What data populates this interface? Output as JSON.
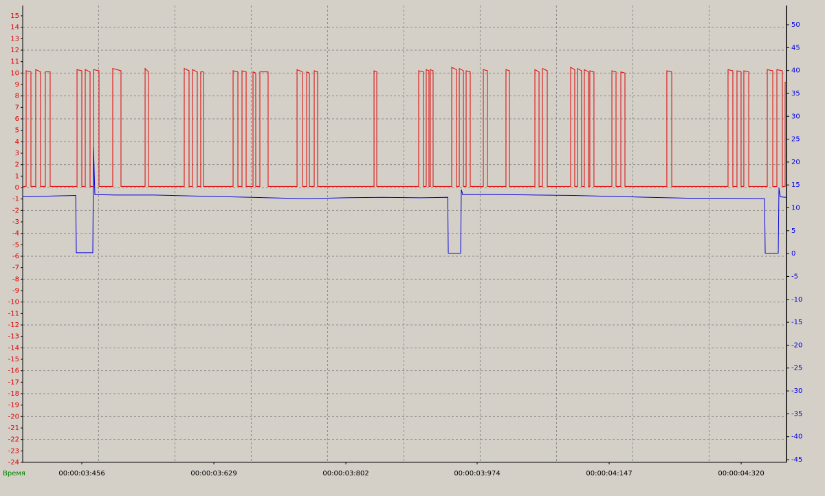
{
  "chart_data": {
    "type": "line",
    "x_label": "Время",
    "xlim": [
      3.3785,
      4.3794
    ],
    "xticks": [
      {
        "value": 3.456,
        "label": "00:00:03:456"
      },
      {
        "value": 3.629,
        "label": "00:00:03:629"
      },
      {
        "value": 3.802,
        "label": "00:00:03:802"
      },
      {
        "value": 3.974,
        "label": "00:00:03:974"
      },
      {
        "value": 4.147,
        "label": "00:00:04:147"
      },
      {
        "value": 4.32,
        "label": "00:00:04:320"
      }
    ],
    "xgrid": [
      3.478,
      3.578,
      3.678,
      3.778,
      3.878,
      3.978,
      4.078,
      4.178,
      4.278
    ],
    "ylim": [
      -24,
      15.9
    ],
    "yticks": [
      15,
      14,
      13,
      12,
      11,
      10,
      9,
      8,
      7,
      6,
      5,
      4,
      3,
      2,
      1,
      0,
      -1,
      -2,
      -3,
      -4,
      -5,
      -6,
      -7,
      -8,
      -9,
      -10,
      -11,
      -12,
      -13,
      -14,
      -15,
      -16,
      -17,
      -18,
      -19,
      -20,
      -21,
      -22,
      -23,
      -24
    ],
    "y2lim": [
      -45.6,
      54.2
    ],
    "y2ticks": [
      50,
      45,
      40,
      35,
      30,
      25,
      20,
      15,
      10,
      5,
      0,
      -5,
      -10,
      -15,
      -20,
      -25,
      -30,
      -35,
      -40,
      -45
    ],
    "grid": true,
    "ytick_color": "#e00000",
    "y2tick_color": "#0000e0",
    "x_label_color": "#008000",
    "series": [
      {
        "color": "#e00000",
        "axis": "y",
        "x": [
          3.3785,
          3.383,
          3.383,
          3.3893,
          3.3893,
          3.3956,
          3.3956,
          3.4019,
          3.4019,
          3.4082,
          3.4082,
          3.4145,
          3.4145,
          3.4497,
          3.4497,
          3.456,
          3.456,
          3.4605,
          3.4605,
          3.4668,
          3.4668,
          3.4713,
          3.4713,
          3.4785,
          3.4785,
          3.4965,
          3.4965,
          3.5073,
          3.5073,
          3.5389,
          3.5389,
          3.5434,
          3.5434,
          3.5902,
          3.5902,
          3.5965,
          3.5965,
          3.601,
          3.601,
          3.6073,
          3.6073,
          3.6118,
          3.6118,
          3.6154,
          3.6154,
          3.6542,
          3.6542,
          3.6605,
          3.6605,
          3.6659,
          3.6659,
          3.6713,
          3.6713,
          3.6803,
          3.6803,
          3.6839,
          3.6839,
          3.6893,
          3.6893,
          3.7001,
          3.7001,
          3.738,
          3.738,
          3.7452,
          3.7452,
          3.7506,
          3.7506,
          3.7542,
          3.7542,
          3.7605,
          3.7605,
          3.765,
          3.765,
          3.8389,
          3.8389,
          3.8425,
          3.8425,
          3.8974,
          3.8974,
          3.9037,
          3.9037,
          3.9073,
          3.9073,
          3.9109,
          3.9109,
          3.9127,
          3.9127,
          3.9163,
          3.9163,
          3.9407,
          3.9407,
          3.947,
          3.947,
          3.9506,
          3.9506,
          3.956,
          3.956,
          3.9596,
          3.9596,
          3.965,
          3.965,
          3.9821,
          3.9821,
          3.9875,
          3.9875,
          4.0118,
          4.0118,
          4.0163,
          4.0163,
          4.0497,
          4.0497,
          4.0551,
          4.0551,
          4.0596,
          4.0596,
          4.0659,
          4.0659,
          4.0965,
          4.0965,
          4.1019,
          4.1019,
          4.1055,
          4.1055,
          4.1109,
          4.1109,
          4.1145,
          4.1145,
          4.1199,
          4.1199,
          4.1217,
          4.1217,
          4.1271,
          4.1271,
          4.1506,
          4.1506,
          4.156,
          4.156,
          4.1623,
          4.1623,
          4.1677,
          4.1677,
          4.2226,
          4.2226,
          4.229,
          4.229,
          4.3028,
          4.3028,
          4.3091,
          4.3091,
          4.3145,
          4.3145,
          4.3199,
          4.3199,
          4.3235,
          4.3235,
          4.3299,
          4.3299,
          4.3542,
          4.3542,
          4.3614,
          4.3614,
          4.3668,
          4.3668,
          4.374,
          4.374,
          4.3776,
          4.3776,
          4.3794
        ],
        "values": [
          0.1,
          0.1,
          10.2,
          10.1,
          0.1,
          0.1,
          10.3,
          10.1,
          0.1,
          0.1,
          10.1,
          10.1,
          0.1,
          0.1,
          10.3,
          10.2,
          0.1,
          0.1,
          10.3,
          10.1,
          0.1,
          0.1,
          10.3,
          10.2,
          0.1,
          0.1,
          10.4,
          10.2,
          0.1,
          0.1,
          10.4,
          10.1,
          0.1,
          0.1,
          10.4,
          10.2,
          0.1,
          0.1,
          10.3,
          10.1,
          0.1,
          0.1,
          10.1,
          10.1,
          0.1,
          0.1,
          10.2,
          10.1,
          0.1,
          0.1,
          10.2,
          10.1,
          0.1,
          0.1,
          10.1,
          10.0,
          0.1,
          0.1,
          10.1,
          10.1,
          0.1,
          0.1,
          10.3,
          10.1,
          0.1,
          0.1,
          10.1,
          10.0,
          0.1,
          0.1,
          10.2,
          10.1,
          0.1,
          0.1,
          10.2,
          10.1,
          0.1,
          0.1,
          10.2,
          10.1,
          0.1,
          0.1,
          10.3,
          10.2,
          0.1,
          0.1,
          10.3,
          10.2,
          0.1,
          0.1,
          10.5,
          10.3,
          0.1,
          0.1,
          10.4,
          10.2,
          0.1,
          0.1,
          10.2,
          10.1,
          0.1,
          0.1,
          10.3,
          10.2,
          0.1,
          0.1,
          10.3,
          10.2,
          0.1,
          0.1,
          10.3,
          10.1,
          0.1,
          0.1,
          10.4,
          10.2,
          0.1,
          0.1,
          10.5,
          10.3,
          0.1,
          0.1,
          10.4,
          10.2,
          0.1,
          0.1,
          10.3,
          10.1,
          0.1,
          0.1,
          10.2,
          10.1,
          0.1,
          0.1,
          10.2,
          10.1,
          0.1,
          0.1,
          10.1,
          10.0,
          0.1,
          0.1,
          10.2,
          10.1,
          0.1,
          0.1,
          10.3,
          10.2,
          0.1,
          0.1,
          10.2,
          10.1,
          0.1,
          0.1,
          10.2,
          10.1,
          0.1,
          0.1,
          10.3,
          10.2,
          0.1,
          0.1,
          10.3,
          10.2,
          0.1,
          0.1,
          9.2,
          9.2
        ]
      },
      {
        "color": "#0000e0",
        "axis": "y2",
        "x": [
          3.3785,
          3.4,
          3.42,
          3.448,
          3.4488,
          3.4704,
          3.4713,
          3.4731,
          3.5,
          3.55,
          3.6,
          3.65,
          3.7,
          3.75,
          3.8,
          3.85,
          3.9,
          3.9355,
          3.9362,
          3.9524,
          3.9533,
          3.9551,
          4.0,
          4.05,
          4.1,
          4.15,
          4.2,
          4.25,
          4.3,
          4.3507,
          4.3515,
          4.3686,
          4.3695,
          4.3713,
          4.3794
        ],
        "values": [
          12.4,
          12.5,
          12.6,
          12.7,
          0.2,
          0.2,
          23.3,
          12.9,
          12.8,
          12.8,
          12.6,
          12.4,
          12.2,
          12.0,
          12.2,
          12.3,
          12.2,
          12.3,
          0.1,
          0.1,
          14.0,
          12.9,
          12.9,
          12.8,
          12.7,
          12.5,
          12.3,
          12.1,
          12.1,
          12.0,
          0.1,
          0.1,
          14.3,
          12.4,
          12.3
        ]
      }
    ]
  }
}
